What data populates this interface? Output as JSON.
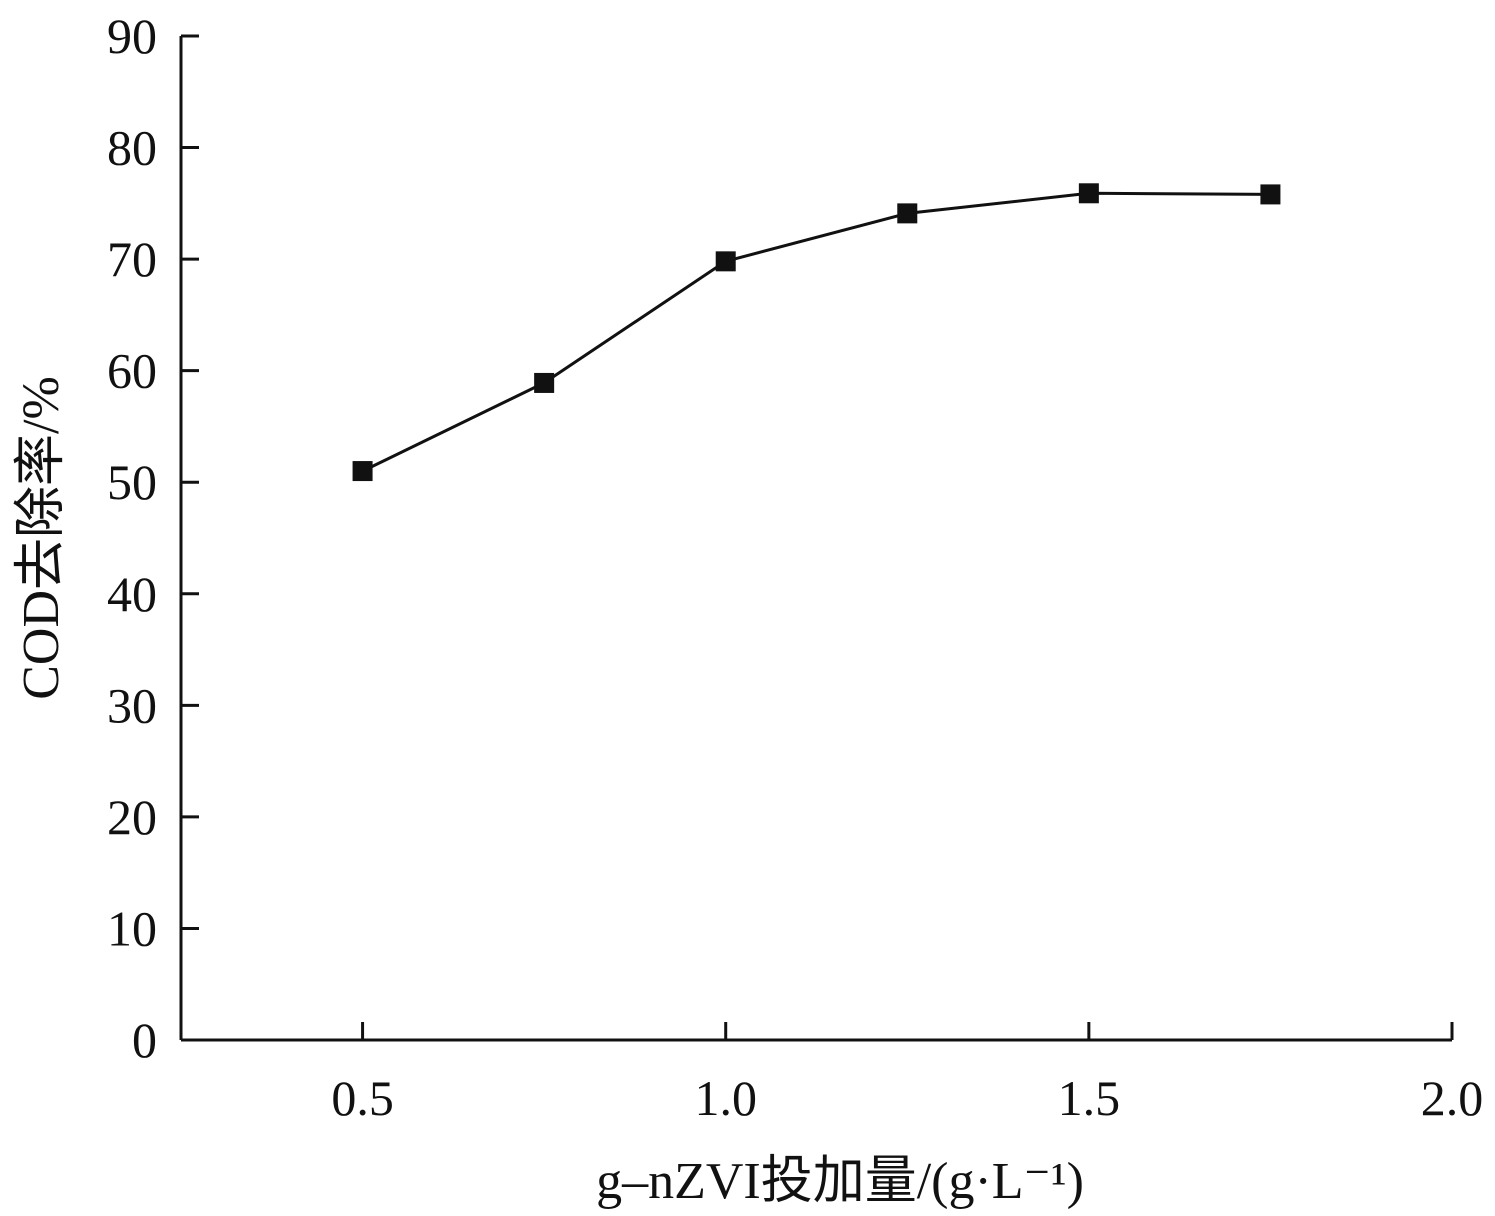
{
  "chart_data": {
    "type": "line",
    "title": "",
    "xlabel": "g–nZVI投加量/(g·L⁻¹)",
    "ylabel": "COD去除率/%",
    "xlim": [
      0.25,
      2.0
    ],
    "ylim": [
      0,
      90
    ],
    "x_ticks": [
      0.5,
      1.0,
      1.5,
      2.0
    ],
    "x_tick_labels": [
      "0.5",
      "1.0",
      "1.5",
      "2.0"
    ],
    "y_ticks": [
      0,
      10,
      20,
      30,
      40,
      50,
      60,
      70,
      80,
      90
    ],
    "y_tick_labels": [
      "0",
      "10",
      "20",
      "30",
      "40",
      "50",
      "60",
      "70",
      "80",
      "90"
    ],
    "grid": false,
    "legend": "none",
    "marker": "square",
    "colors": {
      "series": "#111111"
    },
    "series": [
      {
        "x": [
          0.5,
          0.75,
          1.0,
          1.25,
          1.5,
          1.75
        ],
        "values": [
          51.0,
          58.9,
          69.8,
          74.1,
          75.9,
          75.8
        ]
      }
    ]
  }
}
